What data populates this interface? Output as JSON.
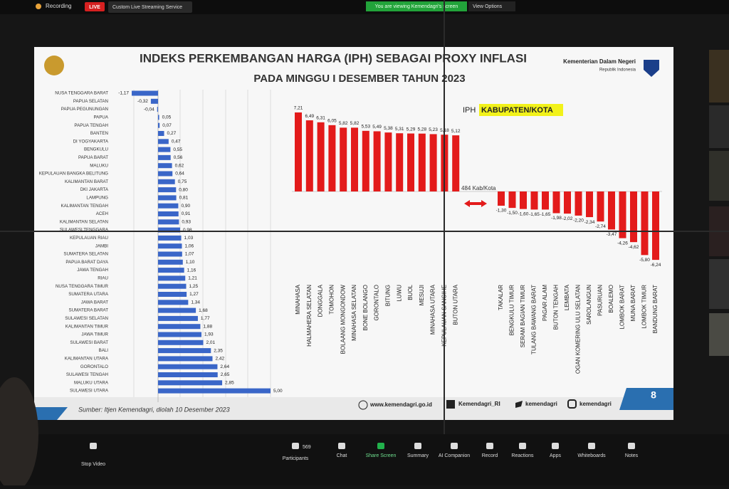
{
  "zoom": {
    "top": {
      "recording": "Recording",
      "live": "LIVE",
      "stream": "Custom Live Streaming Service",
      "viewing": "You are viewing Kemendagri's screen",
      "view_options": "View Options"
    },
    "toolbar": [
      {
        "label": "Stop Video"
      },
      {
        "label": "Participants",
        "count": 569
      },
      {
        "label": "Chat"
      },
      {
        "label": "Share Screen"
      },
      {
        "label": "Summary"
      },
      {
        "label": "AI Companion"
      },
      {
        "label": "Record"
      },
      {
        "label": "Reactions"
      },
      {
        "label": "Apps"
      },
      {
        "label": "Whiteboards"
      },
      {
        "label": "Notes"
      }
    ]
  },
  "slide": {
    "title": "INDEKS PERKEMBANGAN HARGA (IPH) SEBAGAI PROXY INFLASI",
    "subtitle": "PADA MINGGU I DESEMBER TAHUN 2023",
    "ministry": "Kementerian Dalam Negeri",
    "republic": "Republik Indonesia",
    "source": "Sumber: Itjen Kemendagri, diolah 10 Desember 2023",
    "website": "www.kemendagri.go.id",
    "facebook": "Kemendagri_RI",
    "twitter": "kemendagri",
    "instagram": "kemendagri",
    "page": 8
  },
  "chart_data": [
    {
      "type": "hbar",
      "color": "#3a66c8",
      "categories": [
        "NUSA TENGGARA BARAT",
        "PAPUA SELATAN",
        "PAPUA PEGUNUNGAN",
        "PAPUA",
        "PAPUA TENGAH",
        "BANTEN",
        "DI YOGYAKARTA",
        "BENGKULU",
        "PAPUA BARAT",
        "MALUKU",
        "KEPULAUAN BANGKA BELITUNG",
        "KALIMANTAN BARAT",
        "DKI JAKARTA",
        "LAMPUNG",
        "KALIMANTAN TENGAH",
        "ACEH",
        "KALIMANTAN SELATAN",
        "SULAWESI TENGGARA",
        "KEPULAUAN RIAU",
        "JAMBI",
        "SUMATERA SELATAN",
        "PAPUA BARAT DAYA",
        "JAWA TENGAH",
        "RIAU",
        "NUSA TENGGARA TIMUR",
        "SUMATERA UTARA",
        "JAWA BARAT",
        "SUMATERA BARAT",
        "SULAWESI SELATAN",
        "KALIMANTAN TIMUR",
        "JAWA TIMUR",
        "SULAWESI BARAT",
        "BALI",
        "KALIMANTAN UTARA",
        "GORONTALO",
        "SULAWESI TENGAH",
        "MALUKU UTARA",
        "SULAWESI UTARA"
      ],
      "values": [
        -1.17,
        -0.32,
        -0.04,
        0.05,
        0.07,
        0.27,
        0.47,
        0.55,
        0.56,
        0.62,
        0.64,
        0.75,
        0.8,
        0.81,
        0.9,
        0.91,
        0.93,
        0.98,
        1.03,
        1.06,
        1.07,
        1.1,
        1.16,
        1.21,
        1.25,
        1.27,
        1.34,
        1.68,
        1.77,
        1.88,
        1.93,
        2.01,
        2.35,
        2.42,
        2.64,
        2.65,
        2.85,
        5.0
      ],
      "value_labels": [
        "-1,17",
        "-0,32",
        "-0,04",
        "0,05",
        "0,07",
        "0,27",
        "0,47",
        "0,55",
        "0,56",
        "0,62",
        "0,64",
        "0,75",
        "0,80",
        "0,81",
        "0,90",
        "0,91",
        "0,93",
        "0,98",
        "1,03",
        "1,06",
        "1,07",
        "1,10",
        "1,16",
        "1,21",
        "1,25",
        "1,27",
        "1,34",
        "1,68",
        "1,77",
        "1,88",
        "1,93",
        "2,01",
        "2,35",
        "2,42",
        "2,64",
        "2,65",
        "2,85",
        "5,00"
      ]
    },
    {
      "type": "bar",
      "color": "#e31b1b",
      "title_prefix": "IPH",
      "title_highlight": "KABUPATEN/KOTA",
      "annotation": "484 Kab/Kota",
      "categories": [
        "MINAHASA",
        "HALMAHERA SELATAN",
        "DONGGALA",
        "TOMOHON",
        "BOLAANG MONGONDOW",
        "MINAHASA SELATAN",
        "BONE BOLANGO",
        "GORONTALO",
        "BITUNG",
        "LUWU",
        "BUOL",
        "MESUJI",
        "MINAHASA UTARA",
        "KEPULAUAN SANGIHE",
        "BUTON UTARA",
        "TAKALAR",
        "BENGKULU TIMUR",
        "SERAM BAGIAN TIMUR",
        "TULANG BAWANG BARAT",
        "PAGAR ALAM",
        "BUTON TENGAH",
        "LEMBATA",
        "OGAN KOMERING ULU SELATAN",
        "SAROLANGUN",
        "PASURUAN",
        "BOALEMO",
        "LOMBOK BARAT",
        "MUNA BARAT",
        "LOMBOK TIMUR",
        "BANDUNG BARAT"
      ],
      "values": [
        7.21,
        6.49,
        6.31,
        6.05,
        5.82,
        5.82,
        5.53,
        5.49,
        5.38,
        5.31,
        5.29,
        5.28,
        5.23,
        5.18,
        5.12,
        -1.3,
        -1.5,
        -1.6,
        -1.65,
        -1.65,
        -1.98,
        -2.02,
        -2.2,
        -2.34,
        -2.74,
        -3.47,
        -4.26,
        -4.62,
        -5.8,
        -6.24
      ],
      "value_labels": [
        "7,21",
        "6,49",
        "6,31",
        "6,05",
        "5,82",
        "5,82",
        "5,53",
        "5,49",
        "5,38",
        "5,31",
        "5,29",
        "5,28",
        "5,23",
        "5,18",
        "5,12",
        "-1,30",
        "-1,50",
        "-1,60",
        "-1,65",
        "-1,65",
        "-1,98",
        "-2,02",
        "-2,20",
        "-2,34",
        "-2,74",
        "-3,47",
        "-4,26",
        "-4,62",
        "-5,80",
        "-6,24"
      ]
    }
  ]
}
